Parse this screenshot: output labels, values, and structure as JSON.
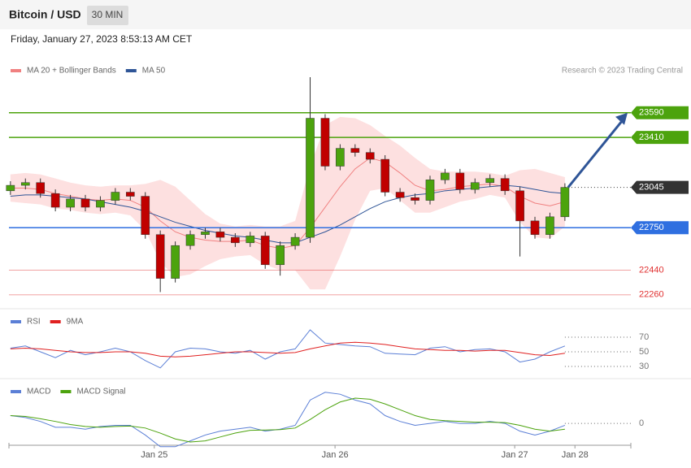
{
  "header": {
    "title": "Bitcoin / USD",
    "timeframe": "30 MIN",
    "date": "Friday, January 27, 2023 8:53:13 AM CET",
    "credit": "Research © 2023 Trading Central"
  },
  "chart_data": [
    {
      "type": "candlestick",
      "categories": [
        null,
        null,
        null,
        null,
        null,
        null,
        null,
        null,
        null,
        null,
        null,
        null,
        null,
        null,
        null,
        null,
        null,
        null,
        null,
        null,
        null,
        null,
        null,
        null,
        null,
        null,
        null,
        null,
        null,
        null,
        null,
        null,
        null,
        null,
        null,
        null,
        null,
        null
      ],
      "open": [
        23020,
        23060,
        23080,
        23000,
        22900,
        22960,
        22900,
        22950,
        23010,
        22980,
        22700,
        22380,
        22620,
        22700,
        22720,
        22680,
        22640,
        22690,
        22480,
        22620,
        22680,
        23550,
        23200,
        23330,
        23300,
        23250,
        23010,
        22970,
        22950,
        23100,
        23150,
        23030,
        23080,
        23110,
        23020,
        22800,
        22700,
        22830
      ],
      "high": [
        23090,
        23110,
        23110,
        23030,
        22990,
        22990,
        22980,
        23040,
        23040,
        23010,
        22730,
        22650,
        22730,
        22750,
        22750,
        22710,
        22720,
        22720,
        22650,
        22710,
        23850,
        23580,
        23360,
        23360,
        23330,
        23280,
        23040,
        23000,
        23130,
        23180,
        23180,
        23110,
        23140,
        23140,
        23050,
        22830,
        22860,
        23075
      ],
      "low": [
        22990,
        23030,
        22970,
        22870,
        22870,
        22870,
        22870,
        22920,
        22950,
        22670,
        22280,
        22350,
        22590,
        22670,
        22650,
        22610,
        22610,
        22450,
        22400,
        22590,
        22640,
        23170,
        23170,
        23270,
        23220,
        22980,
        22940,
        22920,
        22920,
        23070,
        23000,
        23000,
        23050,
        22990,
        22540,
        22670,
        22670,
        22800
      ],
      "close": [
        23060,
        23080,
        23000,
        22900,
        22960,
        22900,
        22950,
        23010,
        22980,
        22700,
        22380,
        22620,
        22700,
        22720,
        22680,
        22640,
        22690,
        22480,
        22620,
        22680,
        23550,
        23200,
        23330,
        23300,
        23250,
        23010,
        22970,
        22950,
        23100,
        23150,
        23030,
        23080,
        23110,
        23020,
        22800,
        22700,
        22830,
        23045
      ],
      "up_color": "#4ca30d",
      "down_color": "#c00000",
      "series": [
        {
          "name": "MA 20 + Bollinger Bands",
          "color": "#f08080",
          "band_color": "#fde0e0",
          "values": [
            23040,
            23040,
            23030,
            23000,
            22980,
            22960,
            22950,
            22960,
            22950,
            22900,
            22800,
            22720,
            22680,
            22660,
            22650,
            22650,
            22660,
            22620,
            22600,
            22620,
            22750,
            22900,
            23050,
            23180,
            23260,
            23230,
            23150,
            23060,
            23020,
            23030,
            23050,
            23060,
            23070,
            23050,
            22980,
            22930,
            22910,
            22940
          ],
          "upper": [
            23140,
            23150,
            23140,
            23110,
            23080,
            23060,
            23050,
            23060,
            23060,
            23070,
            23100,
            23050,
            22950,
            22850,
            22780,
            22760,
            22770,
            22760,
            22760,
            22800,
            23200,
            23500,
            23560,
            23550,
            23500,
            23420,
            23350,
            23260,
            23180,
            23160,
            23160,
            23160,
            23150,
            23130,
            23170,
            23180,
            23150,
            23120
          ],
          "lower": [
            22940,
            22930,
            22920,
            22890,
            22880,
            22860,
            22850,
            22860,
            22840,
            22730,
            22500,
            22390,
            22410,
            22470,
            22520,
            22540,
            22550,
            22480,
            22440,
            22440,
            22300,
            22300,
            22540,
            22810,
            23020,
            23040,
            22950,
            22860,
            22860,
            22900,
            22940,
            22960,
            22990,
            22970,
            22790,
            22680,
            22670,
            22760
          ]
        },
        {
          "name": "MA 50",
          "color": "#2f5597",
          "values": [
            22980,
            22990,
            22990,
            22980,
            22970,
            22960,
            22940,
            22920,
            22900,
            22870,
            22830,
            22790,
            22760,
            22730,
            22710,
            22690,
            22680,
            22660,
            22640,
            22640,
            22680,
            22720,
            22770,
            22830,
            22890,
            22940,
            22970,
            22990,
            23000,
            23020,
            23030,
            23040,
            23050,
            23060,
            23050,
            23030,
            23010,
            23000
          ]
        }
      ],
      "levels": [
        {
          "value": 23590,
          "color": "#4ca30d",
          "style": "box"
        },
        {
          "value": 23410,
          "color": "#4ca30d",
          "style": "box"
        },
        {
          "value": 23045,
          "color": "#333333",
          "style": "last"
        },
        {
          "value": 22750,
          "color": "#2f6fe0",
          "style": "box"
        },
        {
          "value": 22440,
          "color": "#e03030",
          "style": "text"
        },
        {
          "value": 22260,
          "color": "#e03030",
          "style": "text"
        }
      ],
      "arrow_color": "#2f5597",
      "xlim": [
        -0.1,
        41.4
      ],
      "ylim": [
        22170,
        23850
      ]
    },
    {
      "type": "line",
      "series": [
        {
          "name": "RSI",
          "color": "#5b7fd6",
          "values": [
            55,
            58,
            50,
            42,
            52,
            46,
            50,
            55,
            50,
            38,
            28,
            50,
            55,
            54,
            50,
            48,
            52,
            40,
            50,
            54,
            80,
            62,
            60,
            58,
            57,
            48,
            47,
            46,
            55,
            57,
            50,
            53,
            54,
            50,
            36,
            40,
            50,
            58
          ]
        },
        {
          "name": "9MA",
          "color": "#e02020",
          "values": [
            54,
            55,
            54,
            52,
            50,
            49,
            49,
            50,
            50,
            48,
            44,
            43,
            44,
            46,
            48,
            50,
            50,
            49,
            48,
            49,
            54,
            58,
            62,
            63,
            62,
            60,
            57,
            54,
            53,
            52,
            52,
            51,
            52,
            52,
            49,
            46,
            45,
            48
          ]
        }
      ],
      "xlim": [
        -0.1,
        41.4
      ],
      "ylim": [
        20,
        100
      ],
      "yticks": [
        70,
        50,
        30
      ]
    },
    {
      "type": "line",
      "series": [
        {
          "name": "MACD",
          "color": "#5b7fd6",
          "values": [
            20,
            15,
            5,
            -10,
            -10,
            -15,
            -8,
            -5,
            -5,
            -30,
            -60,
            -60,
            -45,
            -30,
            -20,
            -15,
            -10,
            -20,
            -15,
            -5,
            60,
            80,
            75,
            60,
            50,
            20,
            5,
            -5,
            0,
            5,
            0,
            0,
            5,
            0,
            -20,
            -30,
            -20,
            -5
          ]
        },
        {
          "name": "MACD Signal",
          "color": "#4ca30d",
          "values": [
            20,
            18,
            12,
            5,
            -3,
            -8,
            -10,
            -8,
            -7,
            -12,
            -25,
            -40,
            -48,
            -45,
            -35,
            -25,
            -18,
            -17,
            -16,
            -12,
            10,
            35,
            55,
            65,
            62,
            50,
            35,
            20,
            10,
            7,
            5,
            3,
            3,
            2,
            -5,
            -15,
            -20,
            -15
          ]
        }
      ],
      "xlim": [
        -0.1,
        41.4
      ],
      "ylim": [
        -50,
        90
      ],
      "yticks": [
        0
      ],
      "xticks": [
        {
          "value": 9.6,
          "label": "Jan 25"
        },
        {
          "value": 21.66,
          "label": "Jan 26"
        },
        {
          "value": 33.65,
          "label": "Jan 27"
        },
        {
          "value": 37.67,
          "label": "Jan 28"
        }
      ]
    }
  ]
}
